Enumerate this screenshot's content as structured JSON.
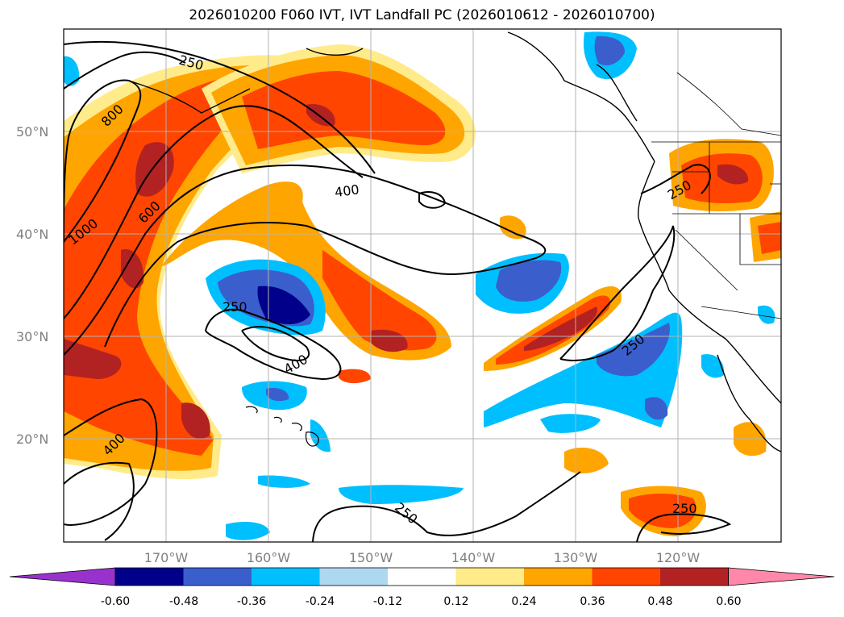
{
  "title": "2026010200 F060 IVT, IVT Landfall PC (2026010612 - 2026010700)",
  "map": {
    "lat_labels": [
      "50°N",
      "40°N",
      "30°N",
      "20°N"
    ],
    "lon_labels": [
      "170°W",
      "160°W",
      "150°W",
      "140°W",
      "130°W",
      "120°W"
    ],
    "grid": true,
    "gridline_color": "#b3b3b3"
  },
  "contours": {
    "color": "#000000",
    "labels": [
      "250",
      "800",
      "600",
      "1000",
      "400",
      "250",
      "250",
      "400",
      "400",
      "250",
      "250",
      "250"
    ]
  },
  "colorbar": {
    "tick_labels": [
      "-0.60",
      "-0.48",
      "-0.36",
      "-0.24",
      "-0.12",
      "0.12",
      "0.24",
      "0.36",
      "0.48",
      "0.60"
    ],
    "colors": [
      "#9932cc",
      "#00008b",
      "#3a5fcd",
      "#00bfff",
      "#add8f0",
      "#ffffff",
      "#ffeb8a",
      "#ffa500",
      "#ff4500",
      "#b22222",
      "#ff88aa"
    ],
    "extend": "both"
  }
}
